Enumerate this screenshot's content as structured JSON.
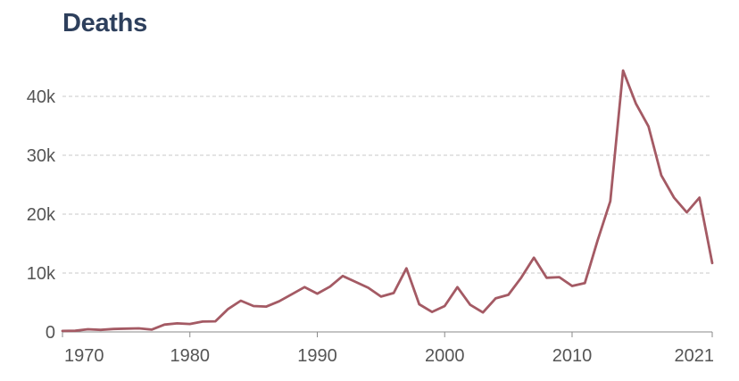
{
  "chart_data": {
    "type": "line",
    "title": "Deaths",
    "xlabel": "",
    "ylabel": "",
    "xlim": [
      1970,
      2021
    ],
    "ylim": [
      0,
      45000
    ],
    "y_ticks": [
      0,
      10000,
      20000,
      30000,
      40000
    ],
    "y_tick_labels": [
      "0",
      "10k",
      "20k",
      "30k",
      "40k"
    ],
    "x_ticks": [
      1970,
      1980,
      1990,
      2000,
      2010,
      2021
    ],
    "x_tick_labels": [
      "1970",
      "1980",
      "1990",
      "2000",
      "2010",
      "2021"
    ],
    "grid": true,
    "color": "#a45a64",
    "series": [
      {
        "x": [
          1970,
          1971,
          1972,
          1973,
          1974,
          1975,
          1976,
          1977,
          1978,
          1979,
          1980,
          1981,
          1982,
          1983,
          1984,
          1985,
          1986,
          1987,
          1988,
          1989,
          1990,
          1991,
          1992,
          1993,
          1994,
          1995,
          1996,
          1997,
          1998,
          1999,
          2000,
          2001,
          2002,
          2003,
          2004,
          2005,
          2006,
          2007,
          2008,
          2009,
          2010,
          2011,
          2012,
          2013,
          2014,
          2015,
          2016,
          2017,
          2018,
          2019,
          2020,
          2021
        ],
        "values": [
          170,
          190,
          450,
          350,
          500,
          560,
          600,
          400,
          1250,
          1450,
          1350,
          1750,
          1800,
          3900,
          5300,
          4400,
          4300,
          5200,
          6400,
          7600,
          6500,
          7700,
          9500,
          8500,
          7500,
          6000,
          6600,
          10800,
          4700,
          3400,
          4400,
          7600,
          4600,
          3300,
          5700,
          6300,
          9200,
          12600,
          9200,
          9300,
          7800,
          8300,
          15500,
          22200,
          44400,
          38800,
          34900,
          26600,
          22800,
          20300,
          22800,
          11700
        ]
      }
    ]
  }
}
